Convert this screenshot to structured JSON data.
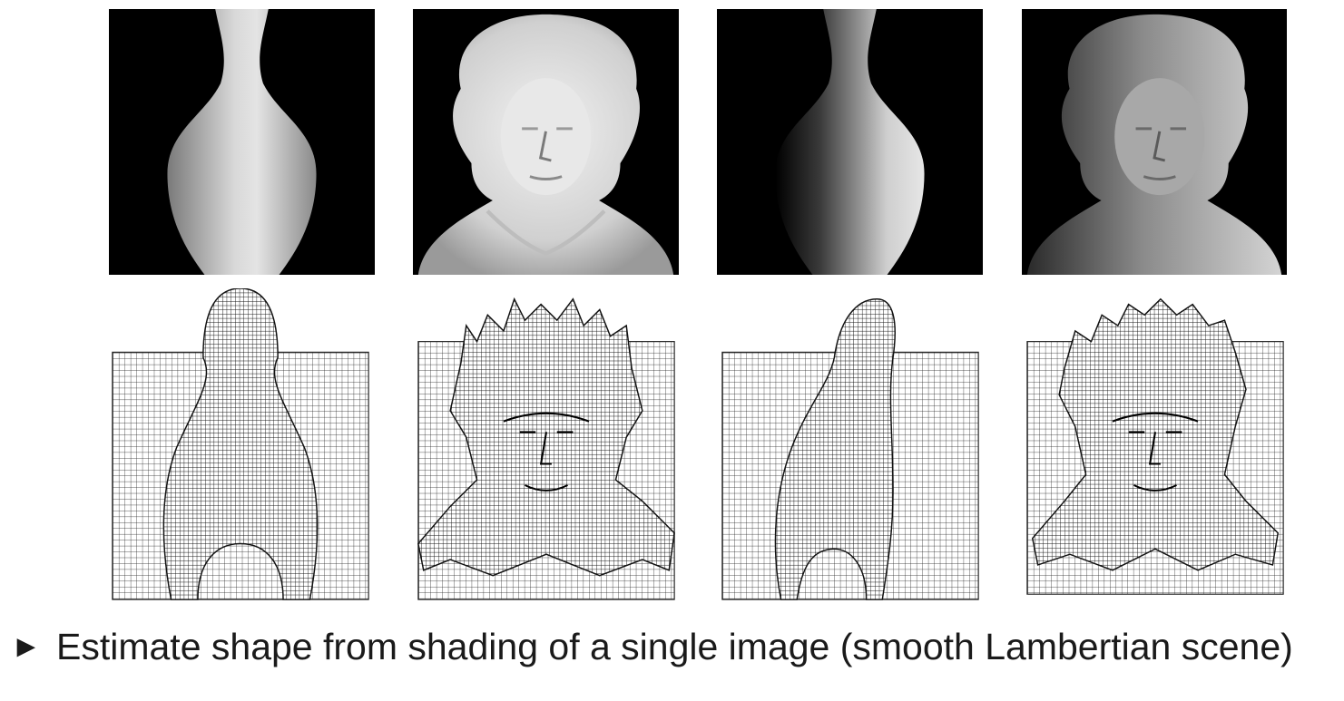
{
  "figure": {
    "panels": [
      {
        "id": "vase-synthetic-front-lit",
        "icon": "vase-shaded-image"
      },
      {
        "id": "bust-synthetic-front-lit",
        "icon": "bust-shaded-image"
      },
      {
        "id": "vase-side-lit",
        "icon": "vase-shaded-image"
      },
      {
        "id": "bust-side-lit",
        "icon": "bust-shaded-image"
      }
    ],
    "meshes": [
      {
        "id": "vase-mesh-front",
        "icon": "wireframe-surface"
      },
      {
        "id": "bust-mesh-front",
        "icon": "wireframe-surface"
      },
      {
        "id": "vase-mesh-side",
        "icon": "wireframe-surface"
      },
      {
        "id": "bust-mesh-side",
        "icon": "wireframe-surface"
      }
    ]
  },
  "caption": {
    "bullet": "►",
    "text": "Estimate shape from shading of a single image (smooth Lambertian scene)"
  }
}
